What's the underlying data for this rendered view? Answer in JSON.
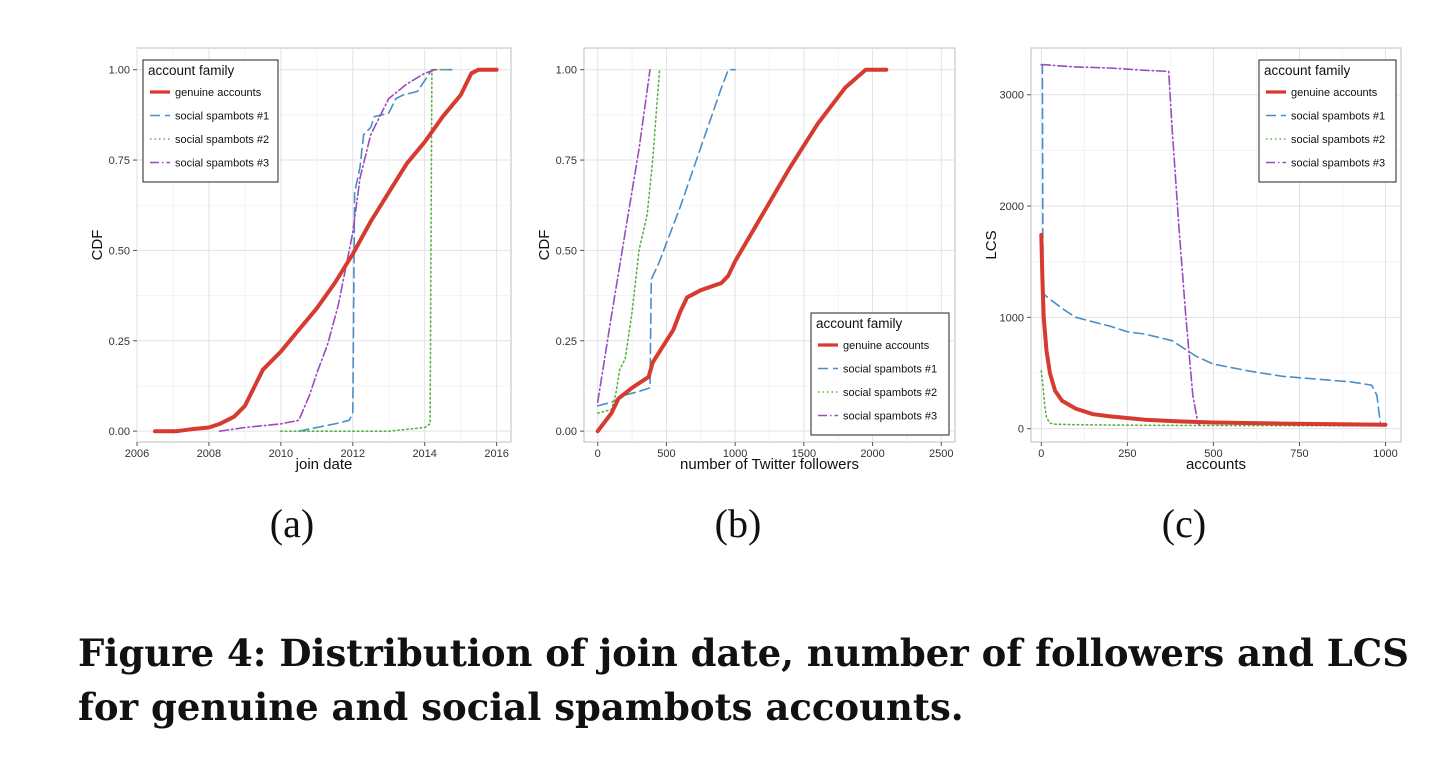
{
  "figure": {
    "caption_label": "Figure 4:",
    "caption_text": "Distribution of join date, number of followers and LCS for genuine and social spambots accounts."
  },
  "series_styles": [
    {
      "name": "genuine accounts",
      "color": "#d73a2e",
      "dash": "",
      "width": 4
    },
    {
      "name": "social spambots #1",
      "color": "#4a8ec9",
      "dash": "10,5",
      "width": 1.6
    },
    {
      "name": "social spambots #2",
      "color": "#5ab349",
      "dash": "1.5,3",
      "width": 1.6
    },
    {
      "name": "social spambots #3",
      "color": "#9b4bbf",
      "dash": "9,3,1.5,3",
      "width": 1.6
    }
  ],
  "chart_data": [
    {
      "id": "a",
      "type": "line",
      "sublabel": "(a)",
      "xlabel": "join date",
      "ylabel": "CDF",
      "xlim": [
        2006,
        2016.4
      ],
      "ylim": [
        -0.03,
        1.06
      ],
      "xticks": [
        2006,
        2008,
        2010,
        2012,
        2014,
        2016
      ],
      "yticks": [
        0,
        0.25,
        0.5,
        0.75,
        1.0
      ],
      "ytick_labels": [
        "0.00",
        "0.25",
        "0.50",
        "0.75",
        "1.00"
      ],
      "legend_title": "account family",
      "legend_position": "top-left",
      "series": [
        {
          "name": "genuine accounts",
          "x": [
            2006.5,
            2007.1,
            2007.5,
            2008.0,
            2008.3,
            2008.7,
            2009.0,
            2009.2,
            2009.5,
            2010.0,
            2010.5,
            2011.0,
            2011.5,
            2012.0,
            2012.5,
            2013.0,
            2013.5,
            2014.0,
            2014.5,
            2015.0,
            2015.3,
            2015.5,
            2016.0
          ],
          "y": [
            0.0,
            0.0,
            0.005,
            0.01,
            0.02,
            0.04,
            0.07,
            0.11,
            0.17,
            0.22,
            0.28,
            0.34,
            0.41,
            0.49,
            0.58,
            0.66,
            0.74,
            0.8,
            0.87,
            0.93,
            0.99,
            1.0,
            1.0
          ]
        },
        {
          "name": "social spambots #1",
          "x": [
            2010.5,
            2011.0,
            2011.5,
            2011.9,
            2012.0,
            2012.05,
            2012.2,
            2012.3,
            2012.5,
            2012.6,
            2013.0,
            2013.2,
            2013.4,
            2013.8,
            2014.0,
            2014.2,
            2014.8
          ],
          "y": [
            0.0,
            0.01,
            0.02,
            0.03,
            0.05,
            0.66,
            0.73,
            0.82,
            0.84,
            0.87,
            0.88,
            0.92,
            0.93,
            0.94,
            0.97,
            1.0,
            1.0
          ]
        },
        {
          "name": "social spambots #2",
          "x": [
            2010.0,
            2011.0,
            2012.0,
            2013.0,
            2014.0,
            2014.15,
            2014.2,
            2014.6
          ],
          "y": [
            0.0,
            0.0,
            0.0,
            0.0,
            0.01,
            0.02,
            1.0,
            1.0
          ]
        },
        {
          "name": "social spambots #3",
          "x": [
            2008.3,
            2009.0,
            2010.0,
            2010.5,
            2010.8,
            2011.0,
            2011.3,
            2011.6,
            2011.8,
            2012.0,
            2012.2,
            2012.5,
            2013.0,
            2013.5,
            2014.0,
            2014.3
          ],
          "y": [
            0.0,
            0.01,
            0.02,
            0.03,
            0.1,
            0.16,
            0.24,
            0.35,
            0.45,
            0.55,
            0.7,
            0.82,
            0.92,
            0.96,
            0.99,
            1.0
          ]
        }
      ]
    },
    {
      "id": "b",
      "type": "line",
      "sublabel": "(b)",
      "xlabel": "number of Twitter followers",
      "ylabel": "CDF",
      "xlim": [
        -100,
        2600
      ],
      "ylim": [
        -0.03,
        1.06
      ],
      "xticks": [
        0,
        500,
        1000,
        1500,
        2000,
        2500
      ],
      "yticks": [
        0,
        0.25,
        0.5,
        0.75,
        1.0
      ],
      "ytick_labels": [
        "0.00",
        "0.25",
        "0.50",
        "0.75",
        "1.00"
      ],
      "legend_title": "account family",
      "legend_position": "bottom-right",
      "series": [
        {
          "name": "genuine accounts",
          "x": [
            0,
            100,
            150,
            250,
            370,
            400,
            450,
            500,
            550,
            600,
            650,
            700,
            750,
            900,
            950,
            1000,
            1200,
            1400,
            1600,
            1800,
            1950,
            2000,
            2100
          ],
          "y": [
            0.0,
            0.05,
            0.09,
            0.12,
            0.15,
            0.19,
            0.22,
            0.25,
            0.28,
            0.33,
            0.37,
            0.38,
            0.39,
            0.41,
            0.43,
            0.47,
            0.6,
            0.73,
            0.85,
            0.95,
            1.0,
            1.0,
            1.0
          ]
        },
        {
          "name": "social spambots #1",
          "x": [
            0,
            100,
            200,
            300,
            380,
            390,
            450,
            500,
            600,
            700,
            800,
            900,
            950,
            1000
          ],
          "y": [
            0.07,
            0.08,
            0.1,
            0.11,
            0.12,
            0.42,
            0.47,
            0.52,
            0.62,
            0.73,
            0.84,
            0.95,
            1.0,
            1.0
          ]
        },
        {
          "name": "social spambots #2",
          "x": [
            0,
            100,
            130,
            160,
            200,
            250,
            280,
            300,
            330,
            360,
            400,
            430,
            450,
            460
          ],
          "y": [
            0.05,
            0.06,
            0.1,
            0.17,
            0.2,
            0.33,
            0.43,
            0.5,
            0.55,
            0.6,
            0.75,
            0.9,
            1.0,
            1.0
          ]
        },
        {
          "name": "social spambots #3",
          "x": [
            0,
            100,
            200,
            300,
            380
          ],
          "y": [
            0.08,
            0.32,
            0.55,
            0.78,
            1.0
          ]
        }
      ]
    },
    {
      "id": "c",
      "type": "line",
      "sublabel": "(c)",
      "xlabel": "accounts",
      "ylabel": "LCS",
      "xlim": [
        -30,
        1045
      ],
      "ylim": [
        -120,
        3420
      ],
      "xticks": [
        0,
        250,
        500,
        750,
        1000
      ],
      "yticks": [
        0,
        1000,
        2000,
        3000
      ],
      "ytick_labels": [
        "0",
        "1000",
        "2000",
        "3000"
      ],
      "legend_title": "account family",
      "legend_position": "top-right",
      "series": [
        {
          "name": "genuine accounts",
          "x": [
            0,
            3,
            7,
            15,
            25,
            40,
            60,
            100,
            150,
            200,
            300,
            400,
            500,
            700,
            1000
          ],
          "y": [
            1740,
            1350,
            1000,
            700,
            500,
            340,
            250,
            180,
            130,
            110,
            80,
            65,
            55,
            45,
            35
          ]
        },
        {
          "name": "social spambots #1",
          "x": [
            0,
            3,
            5,
            10,
            30,
            70,
            100,
            150,
            200,
            250,
            300,
            380,
            400,
            450,
            500,
            600,
            700,
            900,
            960,
            975,
            985,
            990
          ],
          "y": [
            3270,
            3270,
            1250,
            1200,
            1150,
            1060,
            1000,
            960,
            920,
            870,
            850,
            790,
            750,
            650,
            580,
            520,
            470,
            420,
            390,
            300,
            50,
            30
          ]
        },
        {
          "name": "social spambots #2",
          "x": [
            0,
            5,
            10,
            15,
            25,
            40,
            100,
            300,
            500,
            1000
          ],
          "y": [
            520,
            380,
            200,
            100,
            50,
            40,
            35,
            30,
            28,
            25
          ]
        },
        {
          "name": "social spambots #3",
          "x": [
            0,
            10,
            50,
            100,
            200,
            300,
            370,
            380,
            400,
            420,
            440,
            455,
            460
          ],
          "y": [
            3270,
            3270,
            3260,
            3250,
            3240,
            3220,
            3210,
            2700,
            1800,
            1000,
            300,
            50,
            30
          ]
        }
      ]
    }
  ]
}
